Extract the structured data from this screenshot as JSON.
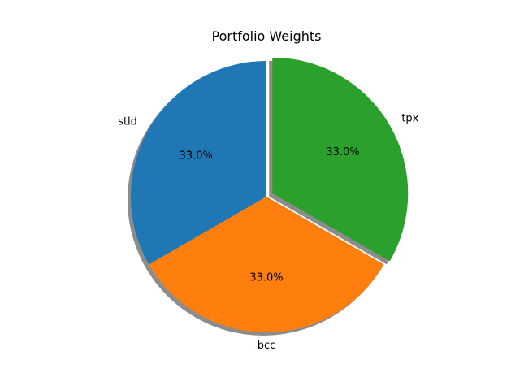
{
  "chart_data": {
    "type": "pie",
    "title": "Portfolio Weights",
    "slices": [
      {
        "label": "stld",
        "value": 33.0,
        "value_label": "33.0%",
        "color": "#1f77b4",
        "exploded": false
      },
      {
        "label": "bcc",
        "value": 33.0,
        "value_label": "33.0%",
        "color": "#ff7f0e",
        "exploded": false
      },
      {
        "label": "tpx",
        "value": 33.0,
        "value_label": "33.0%",
        "color": "#2ca02c",
        "exploded": true
      }
    ],
    "start_angle_deg": 90,
    "direction": "counterclockwise",
    "shadow": true
  }
}
